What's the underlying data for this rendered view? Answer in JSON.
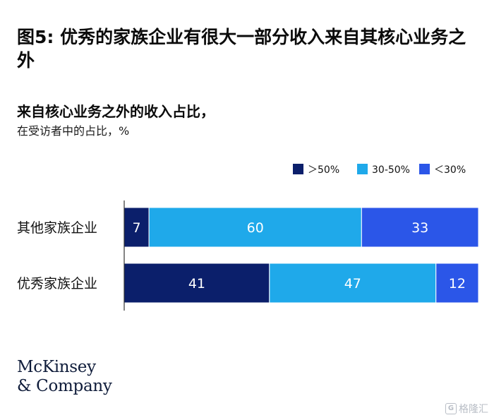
{
  "figure": {
    "title": "图5: 优秀的家族企业有很大一部分收入来自其核心业务之外"
  },
  "logo": {
    "line1": "McKinsey",
    "line2": "& Company"
  },
  "watermark": {
    "text": "格隆汇",
    "icon": "G"
  },
  "chart_data": {
    "type": "bar",
    "orientation": "horizontal",
    "stacked": true,
    "title": "来自核心业务之外的收入占比，",
    "subtitle": "在受访者中的占比，%",
    "categories": [
      "其他家族企业",
      "优秀家族企业"
    ],
    "series": [
      {
        "name": "＞50%",
        "color": "#0b1f6b",
        "values": [
          7,
          41
        ]
      },
      {
        "name": "30-50%",
        "color": "#1fa9ea",
        "values": [
          60,
          47
        ]
      },
      {
        "name": "＜30%",
        "color": "#2b56e8",
        "values": [
          33,
          12
        ]
      }
    ],
    "xlim": [
      0,
      100
    ],
    "legend_position": "top-right",
    "grid": false
  }
}
